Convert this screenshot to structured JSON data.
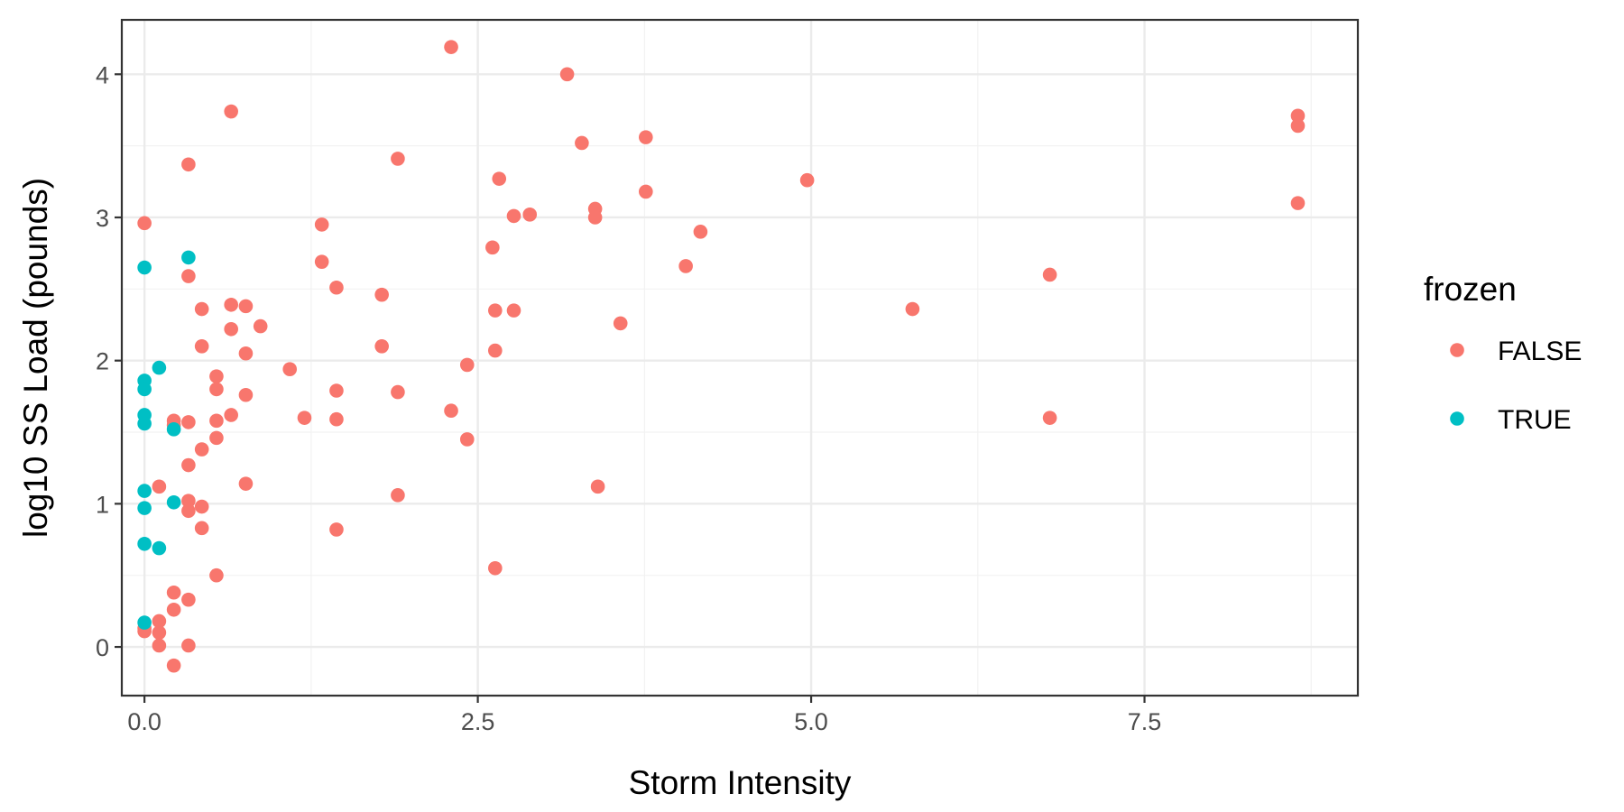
{
  "chart_data": {
    "type": "scatter",
    "xlabel": "Storm Intensity",
    "ylabel": "log10 SS Load (pounds)",
    "xlim": [
      -0.17,
      9.1
    ],
    "ylim": [
      -0.34,
      4.38
    ],
    "x_ticks": [
      0.0,
      2.5,
      5.0,
      7.5
    ],
    "x_tick_labels": [
      "0.0",
      "2.5",
      "5.0",
      "7.5"
    ],
    "y_ticks": [
      0,
      1,
      2,
      3,
      4
    ],
    "y_tick_labels": [
      "0",
      "1",
      "2",
      "3",
      "4"
    ],
    "grid": true,
    "legend": {
      "title": "frozen",
      "position": "right"
    },
    "series": [
      {
        "name": "FALSE",
        "color": "#F8766D",
        "points": [
          [
            0.0,
            2.96
          ],
          [
            0.0,
            0.13
          ],
          [
            0.0,
            0.11
          ],
          [
            0.11,
            1.12
          ],
          [
            0.11,
            0.18
          ],
          [
            0.11,
            0.1
          ],
          [
            0.11,
            0.01
          ],
          [
            0.22,
            1.58
          ],
          [
            0.22,
            1.55
          ],
          [
            0.22,
            0.38
          ],
          [
            0.22,
            0.26
          ],
          [
            0.22,
            -0.13
          ],
          [
            0.33,
            3.37
          ],
          [
            0.33,
            2.59
          ],
          [
            0.33,
            1.57
          ],
          [
            0.33,
            1.27
          ],
          [
            0.33,
            1.02
          ],
          [
            0.33,
            0.95
          ],
          [
            0.33,
            0.33
          ],
          [
            0.33,
            0.01
          ],
          [
            0.43,
            2.36
          ],
          [
            0.43,
            2.1
          ],
          [
            0.43,
            1.38
          ],
          [
            0.43,
            0.98
          ],
          [
            0.43,
            0.83
          ],
          [
            0.54,
            1.89
          ],
          [
            0.54,
            1.8
          ],
          [
            0.54,
            1.58
          ],
          [
            0.54,
            1.46
          ],
          [
            0.54,
            0.5
          ],
          [
            0.65,
            3.74
          ],
          [
            0.65,
            2.39
          ],
          [
            0.65,
            2.22
          ],
          [
            0.65,
            1.62
          ],
          [
            0.76,
            2.38
          ],
          [
            0.76,
            2.05
          ],
          [
            0.76,
            1.76
          ],
          [
            0.76,
            1.14
          ],
          [
            0.87,
            2.24
          ],
          [
            1.09,
            1.94
          ],
          [
            1.2,
            1.6
          ],
          [
            1.33,
            2.95
          ],
          [
            1.33,
            2.69
          ],
          [
            1.44,
            2.51
          ],
          [
            1.44,
            1.79
          ],
          [
            1.44,
            1.59
          ],
          [
            1.44,
            0.82
          ],
          [
            1.78,
            2.46
          ],
          [
            1.78,
            2.1
          ],
          [
            1.9,
            3.41
          ],
          [
            1.9,
            1.78
          ],
          [
            1.9,
            1.06
          ],
          [
            2.3,
            4.19
          ],
          [
            2.3,
            1.65
          ],
          [
            2.42,
            1.97
          ],
          [
            2.42,
            1.45
          ],
          [
            2.61,
            2.79
          ],
          [
            2.63,
            2.35
          ],
          [
            2.63,
            2.07
          ],
          [
            2.63,
            0.55
          ],
          [
            2.66,
            3.27
          ],
          [
            2.77,
            3.01
          ],
          [
            2.77,
            2.35
          ],
          [
            2.89,
            3.02
          ],
          [
            3.17,
            4.0
          ],
          [
            3.28,
            3.52
          ],
          [
            3.38,
            3.06
          ],
          [
            3.38,
            3.0
          ],
          [
            3.4,
            1.12
          ],
          [
            3.57,
            2.26
          ],
          [
            3.76,
            3.56
          ],
          [
            3.76,
            3.18
          ],
          [
            4.06,
            2.66
          ],
          [
            4.17,
            2.9
          ],
          [
            4.97,
            3.26
          ],
          [
            5.76,
            2.36
          ],
          [
            6.79,
            2.6
          ],
          [
            6.79,
            1.6
          ],
          [
            8.65,
            3.71
          ],
          [
            8.65,
            3.64
          ],
          [
            8.65,
            3.1
          ]
        ]
      },
      {
        "name": "TRUE",
        "color": "#00BFC4",
        "points": [
          [
            0.0,
            2.65
          ],
          [
            0.0,
            1.86
          ],
          [
            0.0,
            1.8
          ],
          [
            0.0,
            1.62
          ],
          [
            0.0,
            1.56
          ],
          [
            0.0,
            1.09
          ],
          [
            0.0,
            0.97
          ],
          [
            0.0,
            0.72
          ],
          [
            0.0,
            0.17
          ],
          [
            0.11,
            1.95
          ],
          [
            0.11,
            0.69
          ],
          [
            0.22,
            1.52
          ],
          [
            0.22,
            1.01
          ],
          [
            0.33,
            2.72
          ]
        ]
      }
    ]
  }
}
